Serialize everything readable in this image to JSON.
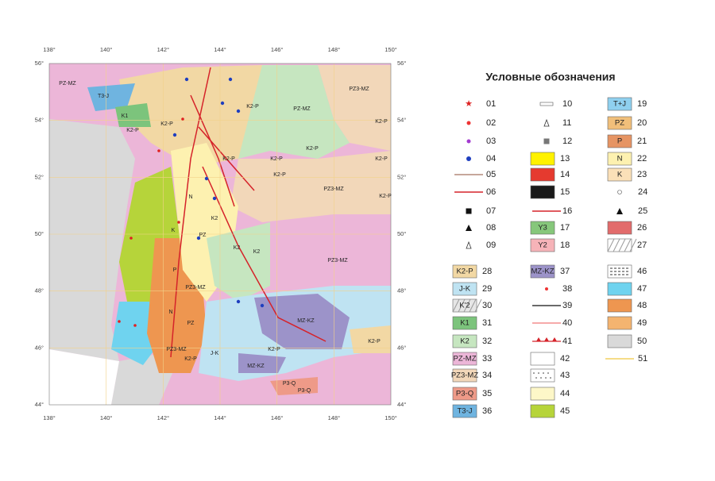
{
  "map": {
    "lon_labels": [
      "138°",
      "140°",
      "142°",
      "144°",
      "146°",
      "148°",
      "150°"
    ],
    "lat_labels": [
      "56°",
      "54°",
      "52°",
      "50°",
      "48°",
      "46°",
      "44°"
    ],
    "labels": [
      "PZ-MZ",
      "T3-J",
      "K1",
      "K2-P",
      "K2-P",
      "K2-P",
      "PZ-MZ",
      "PZ3-MZ",
      "K2-P",
      "K2-P",
      "K2-P",
      "K2-P",
      "K2-P",
      "K2-P",
      "PZ3-MZ",
      "K2-P",
      "N",
      "K2",
      "PZ",
      "K2",
      "K2",
      "PZ3-MZ",
      "PZ3-MZ",
      "MZ-KZ",
      "K2-P",
      "K2-P",
      "MZ-KZ",
      "P3-Q",
      "P3-Q",
      "PZ",
      "PZ3-MZ",
      "K2-P",
      "J-K",
      "N",
      "P",
      "K"
    ]
  },
  "legend": {
    "title": "Условные обозначения",
    "items": [
      {
        "number": "01"
      },
      {
        "number": "02"
      },
      {
        "number": "03"
      },
      {
        "number": "04"
      },
      {
        "number": "05"
      },
      {
        "number": "06"
      },
      {
        "number": "07"
      },
      {
        "number": "08"
      },
      {
        "number": "09"
      },
      {
        "number": "10"
      },
      {
        "number": "11"
      },
      {
        "number": "12"
      },
      {
        "number": "13",
        "color": "#fff200"
      },
      {
        "number": "14",
        "color": "#e53a2f"
      },
      {
        "number": "15",
        "color": "#1a1a1a"
      },
      {
        "number": "16"
      },
      {
        "number": "17",
        "label": "Y3",
        "color": "#86c77b"
      },
      {
        "number": "18",
        "label": "Y2",
        "color": "#f6b3b8"
      },
      {
        "number": "19",
        "label": "T+J",
        "color": "#8fd0ef"
      },
      {
        "number": "20",
        "label": "PZ",
        "color": "#f1bf7a"
      },
      {
        "number": "21",
        "label": "P",
        "color": "#e69463"
      },
      {
        "number": "22",
        "label": "N",
        "color": "#fdf1b0"
      },
      {
        "number": "23",
        "label": "K",
        "color": "#fbe0b8"
      },
      {
        "number": "24"
      },
      {
        "number": "25"
      },
      {
        "number": "26",
        "color": "#e26b6b"
      },
      {
        "number": "27",
        "color": "#ffffff"
      },
      {
        "number": "28",
        "label": "K2-P",
        "color": "#f2d8a4"
      },
      {
        "number": "29",
        "label": "J-K",
        "color": "#bfe3f2"
      },
      {
        "number": "30",
        "label": "K'2",
        "color": "#e6e6e6"
      },
      {
        "number": "31",
        "label": "K1",
        "color": "#7cc47c"
      },
      {
        "number": "32",
        "label": "K2",
        "color": "#c6e6c0"
      },
      {
        "number": "33",
        "label": "PZ-MZ",
        "color": "#ecb6d8"
      },
      {
        "number": "34",
        "label": "PZ3-MZ",
        "color": "#f2d7b9"
      },
      {
        "number": "35",
        "label": "P3-Q",
        "color": "#ee9a88"
      },
      {
        "number": "36",
        "label": "T3-J",
        "color": "#6fb4e0"
      },
      {
        "number": "37",
        "label": "MZ-KZ",
        "color": "#9c93c9"
      },
      {
        "number": "38"
      },
      {
        "number": "39"
      },
      {
        "number": "40"
      },
      {
        "number": "41"
      },
      {
        "number": "42",
        "color": "#ffffff"
      },
      {
        "number": "43",
        "color": "#ffffff"
      },
      {
        "number": "44",
        "color": "#fdf7c8"
      },
      {
        "number": "45",
        "color": "#b6d43a"
      },
      {
        "number": "46",
        "color": "#ffffff"
      },
      {
        "number": "47",
        "color": "#6fd3ef"
      },
      {
        "number": "48",
        "color": "#ee9650"
      },
      {
        "number": "49",
        "color": "#f4b470"
      },
      {
        "number": "50",
        "color": "#d9d9d9"
      },
      {
        "number": "51"
      }
    ]
  }
}
